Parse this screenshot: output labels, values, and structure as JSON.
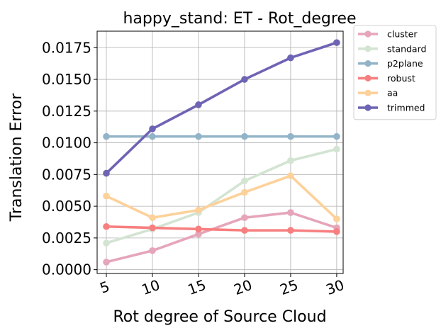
{
  "chart_data": {
    "type": "line",
    "title": "happy_stand: ET - Rot_degree",
    "xlabel": "Rot degree of Source Cloud",
    "ylabel": "Translation Error",
    "x": [
      5,
      10,
      15,
      20,
      25,
      30
    ],
    "x_tick_labels": [
      "5",
      "10",
      "15",
      "20",
      "25",
      "30"
    ],
    "y_ticks": [
      0.0,
      0.0025,
      0.005,
      0.0075,
      0.01,
      0.0125,
      0.015,
      0.0175
    ],
    "y_tick_labels": [
      "0.0000",
      "0.0025",
      "0.0050",
      "0.0075",
      "0.0100",
      "0.0125",
      "0.0150",
      "0.0175"
    ],
    "xlim": [
      4.0,
      30.7
    ],
    "ylim": [
      -0.0003,
      0.0188
    ],
    "grid": true,
    "legend_position": "outside-right",
    "series": [
      {
        "name": "cluster",
        "color": "#e6a5b9",
        "values": [
          0.0006,
          0.0015,
          0.0028,
          0.0041,
          0.0045,
          0.0033
        ]
      },
      {
        "name": "standard",
        "color": "#d3e4d2",
        "values": [
          0.0021,
          0.0032,
          0.0045,
          0.007,
          0.0086,
          0.0095
        ]
      },
      {
        "name": "p2plane",
        "color": "#93b4c8",
        "values": [
          0.0105,
          0.0105,
          0.0105,
          0.0105,
          0.0105,
          0.0105
        ]
      },
      {
        "name": "robust",
        "color": "#f77f7f",
        "values": [
          0.0034,
          0.0033,
          0.0032,
          0.0031,
          0.0031,
          0.003
        ]
      },
      {
        "name": "aa",
        "color": "#fdd19a",
        "values": [
          0.0058,
          0.0041,
          0.0047,
          0.0061,
          0.0074,
          0.004
        ]
      },
      {
        "name": "trimmed",
        "color": "#6e64b4",
        "values": [
          0.0076,
          0.0111,
          0.013,
          0.015,
          0.0167,
          0.0179
        ]
      }
    ]
  }
}
